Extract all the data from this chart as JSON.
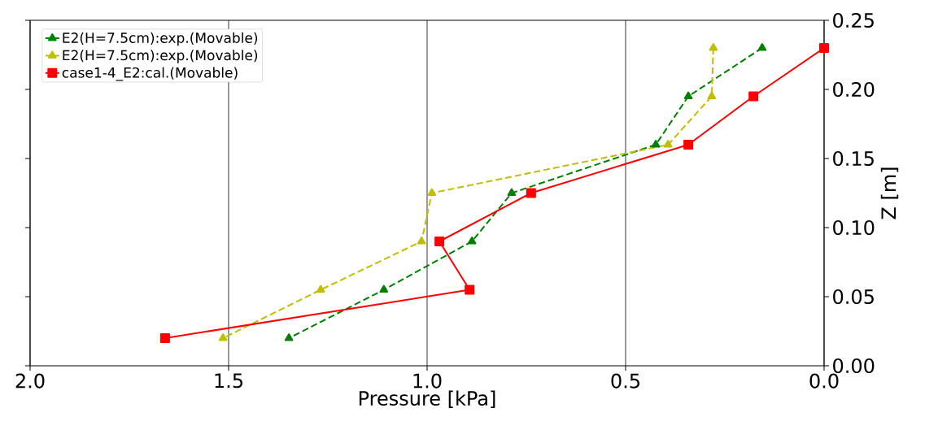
{
  "chart_data": {
    "type": "line",
    "xlabel": "Pressure [kPa]",
    "ylabel": "Z [m]",
    "xlim": [
      2.0,
      0.0
    ],
    "ylim": [
      0.0,
      0.25
    ],
    "xticks": [
      {
        "value": 2.0,
        "label": "2.0"
      },
      {
        "value": 1.5,
        "label": "1.5"
      },
      {
        "value": 1.0,
        "label": "1.0"
      },
      {
        "value": 0.5,
        "label": "0.5"
      },
      {
        "value": 0.0,
        "label": "0.0"
      }
    ],
    "yticks": [
      {
        "value": 0.0,
        "label": "0.00"
      },
      {
        "value": 0.05,
        "label": "0.05"
      },
      {
        "value": 0.1,
        "label": "0.10"
      },
      {
        "value": 0.15,
        "label": "0.15"
      },
      {
        "value": 0.2,
        "label": "0.20"
      },
      {
        "value": 0.25,
        "label": "0.25"
      }
    ],
    "grid": "x",
    "legend": "top left",
    "series": [
      {
        "name": "E2(H=7.5cm):exp.(Movable)",
        "color": "#008000",
        "marker": "triangle",
        "line_style": "dashed",
        "x": [
          0.156,
          0.342,
          0.424,
          0.787,
          0.887,
          1.109,
          1.348
        ],
        "values": [
          0.23,
          0.195,
          0.16,
          0.125,
          0.09,
          0.055,
          0.02
        ]
      },
      {
        "name": "E2(H=7.5cm):exp.(Movable)",
        "color": "#bfbf00",
        "marker": "triangle",
        "line_style": "dashed",
        "x": [
          0.279,
          0.283,
          0.393,
          0.988,
          1.014,
          1.268,
          1.514
        ],
        "values": [
          0.23,
          0.195,
          0.16,
          0.125,
          0.09,
          0.055,
          0.02
        ]
      },
      {
        "name": "case1-4_E2:cal.(Movable)",
        "color": "#ff0000",
        "marker": "square",
        "line_style": "solid",
        "x": [
          0.0,
          0.178,
          0.342,
          0.738,
          0.969,
          0.893,
          1.66
        ],
        "values": [
          0.23,
          0.195,
          0.16,
          0.125,
          0.09,
          0.055,
          0.02
        ]
      }
    ]
  }
}
